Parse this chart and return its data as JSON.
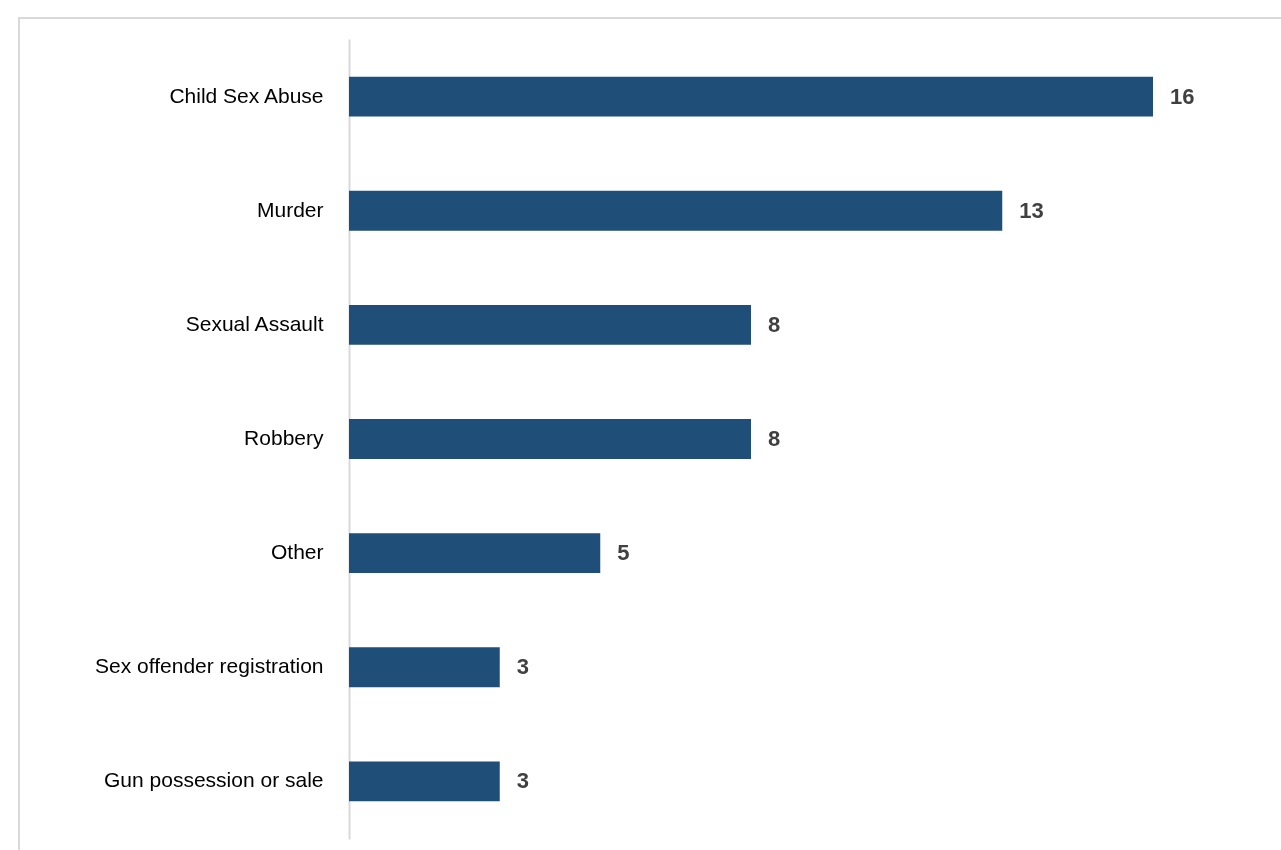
{
  "chart_data": {
    "type": "bar",
    "orientation": "horizontal",
    "categories": [
      "Child Sex Abuse",
      "Murder",
      "Sexual Assault",
      "Robbery",
      "Other",
      "Sex offender registration",
      "Gun possession or sale"
    ],
    "values": [
      16,
      13,
      8,
      8,
      5,
      3,
      3
    ],
    "color": "#1f4e79",
    "data_labels": true,
    "grid": false
  }
}
